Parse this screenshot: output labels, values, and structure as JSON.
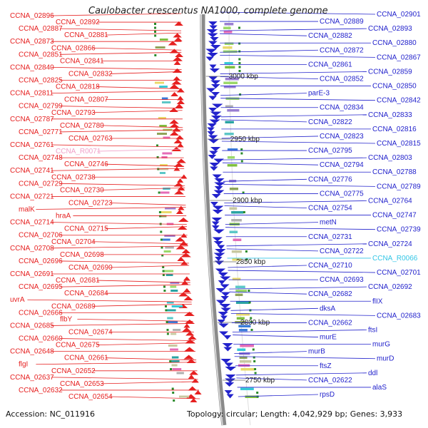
{
  "map": {
    "title": "Caulobacter crescentus NA1000, complete genome",
    "accession_text": "Accession: NC_011916",
    "summary_text": "Topology: circular; Length: 4,042,929 bp; Genes: 3,933",
    "colors": {
      "backbone": "#8a8a8a",
      "backbone_highlight": "#d4d4d4",
      "left_strand": "#e62020",
      "right_strand": "#2222cc",
      "rna_left": "#f0a0c8",
      "rna_right": "#33c6e6",
      "tick_marker": "#2a8a2a"
    },
    "scale_labels": [
      "3000 kbp",
      "2950 kbp",
      "2900 kbp",
      "2850 kbp",
      "2800 kbp",
      "2750 kbp"
    ],
    "left_labels": [
      "CCNA_02896",
      "CCNA_02892",
      "CCNA_02887",
      "CCNA_02881",
      "CCNA_02873",
      "CCNA_02866",
      "CCNA_02851",
      "CCNA_02841",
      "CCNA_02840",
      "CCNA_02832",
      "CCNA_02825",
      "CCNA_02818",
      "CCNA_02811",
      "CCNA_02807",
      "CCNA_02799",
      "CCNA_02793",
      "CCNA_02787",
      "CCNA_02780",
      "CCNA_02771",
      "CCNA_02763",
      "CCNA_02761",
      "CCNA_R0071",
      "CCNA_02748",
      "CCNA_02746",
      "CCNA_02741",
      "CCNA_02738",
      "CCNA_02729",
      "CCNA_02730",
      "CCNA_02721",
      "CCNA_02723",
      "malK",
      "hraA",
      "CCNA_02714",
      "CCNA_02715",
      "CCNA_02706",
      "CCNA_02704",
      "CCNA_02708",
      "CCNA_02698",
      "CCNA_02696",
      "CCNA_02690",
      "CCNA_02691",
      "CCNA_02681",
      "CCNA_02695",
      "CCNA_02684",
      "uvrA",
      "CCNA_02689",
      "CCNA_02666",
      "flbY",
      "CCNA_02685",
      "CCNA_02674",
      "CCNA_02660",
      "CCNA_02675",
      "CCNA_02648",
      "CCNA_02661",
      "flgI",
      "CCNA_02652",
      "CCNA_02637",
      "CCNA_02653",
      "CCNA_02632",
      "CCNA_02654"
    ],
    "right_labels": [
      "CCNA_02901",
      "CCNA_02889",
      "CCNA_02893",
      "CCNA_02882",
      "CCNA_02880",
      "CCNA_02872",
      "CCNA_02867",
      "CCNA_02861",
      "CCNA_02859",
      "CCNA_02852",
      "CCNA_02850",
      "parE-3",
      "CCNA_02842",
      "CCNA_02834",
      "CCNA_02833",
      "CCNA_02822",
      "CCNA_02816",
      "CCNA_02823",
      "CCNA_02815",
      "CCNA_02795",
      "CCNA_02803",
      "CCNA_02794",
      "CCNA_02788",
      "CCNA_02776",
      "CCNA_02789",
      "CCNA_02775",
      "CCNA_02764",
      "CCNA_02754",
      "CCNA_02747",
      "metN",
      "CCNA_02739",
      "CCNA_02731",
      "CCNA_02724",
      "CCNA_02722",
      "CCNA_R0066",
      "CCNA_02710",
      "CCNA_02701",
      "CCNA_02693",
      "CCNA_02692",
      "CCNA_02682",
      "flIX",
      "dksA",
      "CCNA_02683",
      "CCNA_02662",
      "ftsI",
      "murE",
      "murG",
      "murB",
      "murD",
      "ftsZ",
      "ddl",
      "CCNA_02622",
      "alaS",
      "rpsD"
    ]
  }
}
